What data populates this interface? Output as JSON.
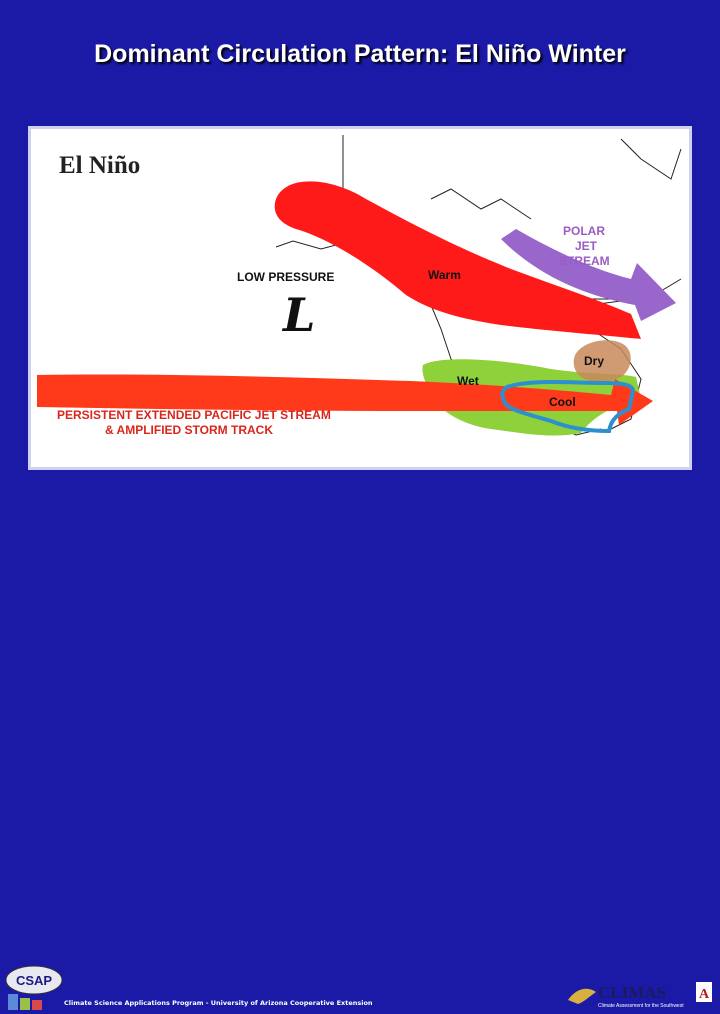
{
  "slide": {
    "title": "Dominant Circulation Pattern: El Niño Winter"
  },
  "map": {
    "heading": "El Niño",
    "labels": {
      "low_pressure": "LOW PRESSURE",
      "low_symbol": "L",
      "warm": "Warm",
      "polar_line1": "POLAR",
      "polar_line2": "JET",
      "polar_line3": "STREAM",
      "dry": "Dry",
      "wet": "Wet",
      "cool": "Cool",
      "pacific_line1": "PERSISTENT EXTENDED PACIFIC JET STREAM",
      "pacific_line2": "& AMPLIFIED STORM TRACK"
    },
    "colors": {
      "warm_band": "#ff1a1a",
      "pacific_jet": "#ff3a1a",
      "polar_jet": "#9966cc",
      "wet_region": "#8fd13a",
      "dry_region": "#c8885a",
      "cool_region": "#2e8fcf",
      "label_red": "#d9261c",
      "label_purple": "#9b5cc4"
    }
  },
  "footer": {
    "csap_logo": "CSAP",
    "text": "Climate Science Applications Program - University of Arizona Cooperative Extension",
    "climas_logo": "CLIMAS",
    "climas_tagline": "Climate Assessment for the Southwest",
    "climas_badge": "A"
  }
}
